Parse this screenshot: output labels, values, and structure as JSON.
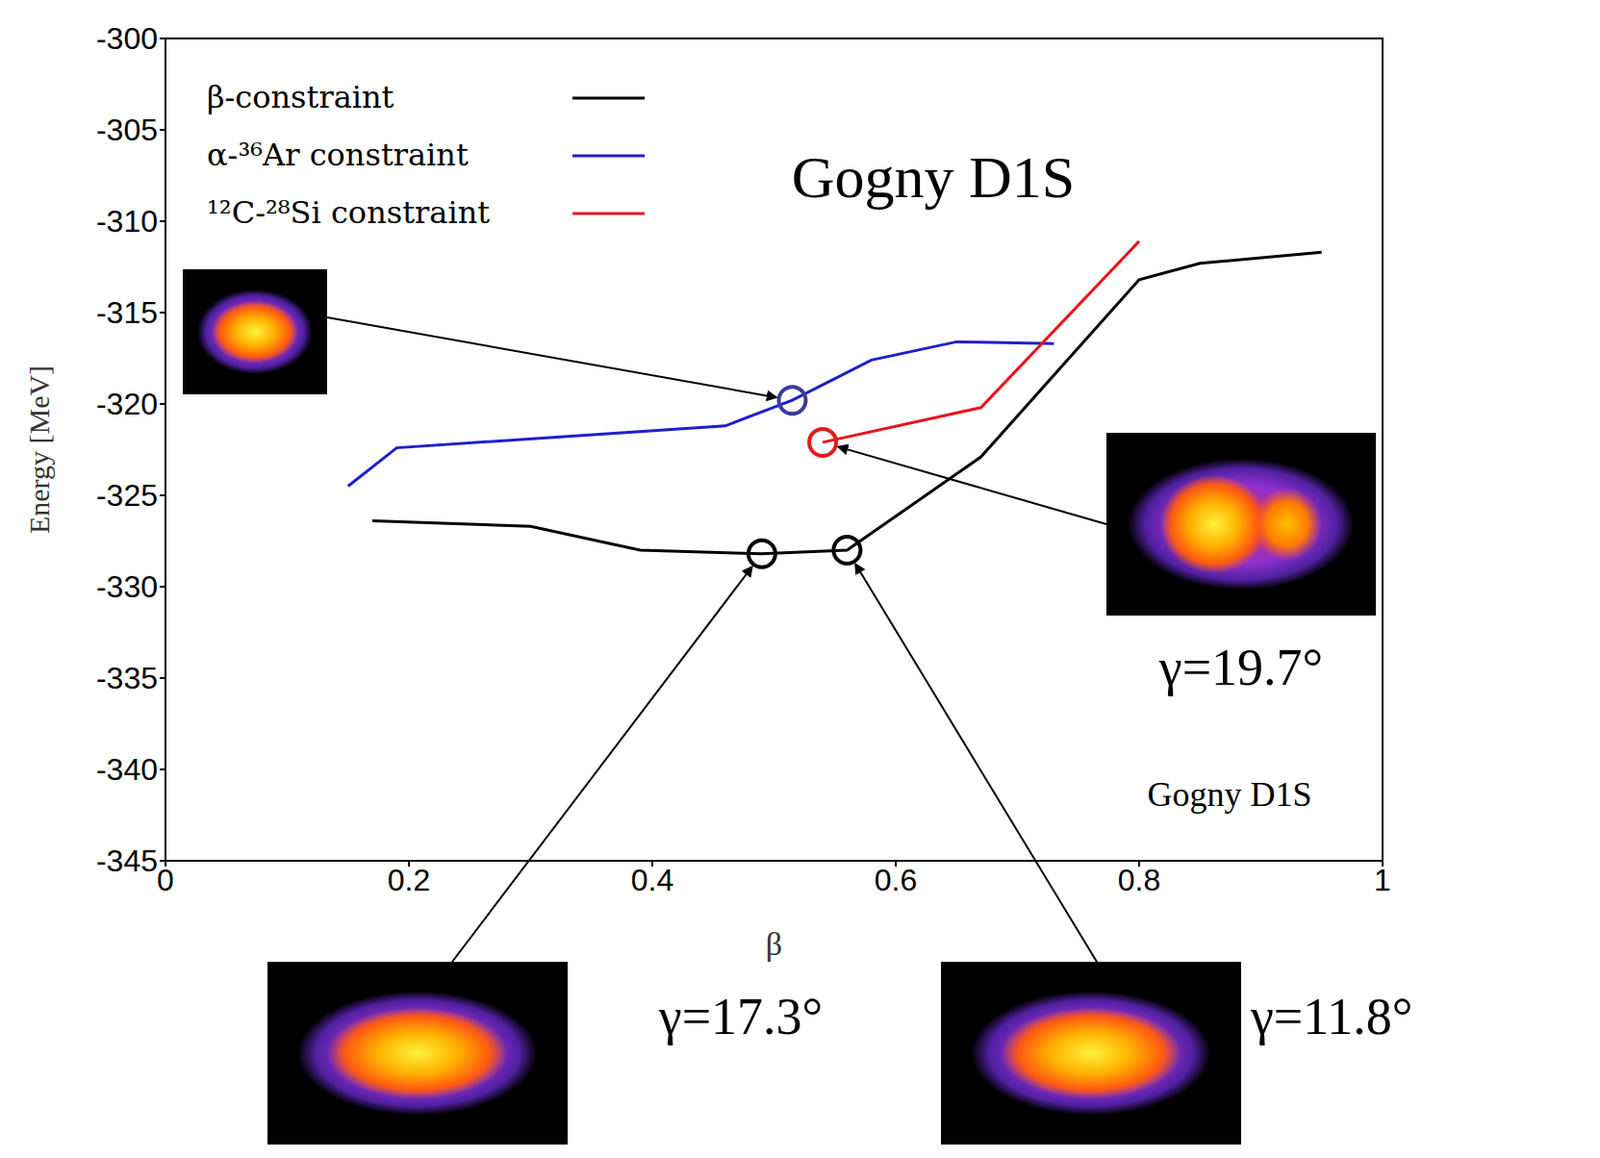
{
  "chart_data": {
    "type": "line",
    "title": "Gogny D1S",
    "xlabel": "β",
    "ylabel": "Energy [MeV]",
    "xlim": [
      0,
      1
    ],
    "xticks": [
      0,
      0.2,
      0.4,
      0.6,
      0.8,
      1
    ],
    "ylim": [
      -345,
      -300
    ],
    "yticks": [
      -345,
      -340,
      -335,
      -330,
      -325,
      -320,
      -315,
      -310,
      -305,
      -300
    ],
    "grid": false,
    "legend": "upper left",
    "series": [
      {
        "name": "β-constraint",
        "color": "#000000",
        "x": [
          0.17,
          0.3,
          0.39,
          0.49,
          0.56,
          0.67,
          0.8,
          0.85,
          0.95
        ],
        "values": [
          -326.4,
          -326.7,
          -328.0,
          -328.2,
          -328.0,
          -322.9,
          -313.2,
          -312.3,
          -311.7
        ]
      },
      {
        "name": "α-³⁶Ar constraint",
        "color": "#1f1fcc",
        "x": [
          0.15,
          0.19,
          0.46,
          0.515,
          0.58,
          0.65,
          0.73
        ],
        "values": [
          -324.5,
          -322.4,
          -321.2,
          -319.8,
          -317.6,
          -316.6,
          -316.7
        ]
      },
      {
        "name": "¹²C-²⁸Si constraint",
        "color": "#e8141c",
        "x": [
          0.54,
          0.67,
          0.8
        ],
        "values": [
          -322.1,
          -320.2,
          -311.1
        ]
      }
    ],
    "highlights": [
      {
        "x": 0.515,
        "y": -319.8,
        "color": "#3a3a9a"
      },
      {
        "x": 0.54,
        "y": -322.1,
        "color": "#e01c1c",
        "label": "γ=19.7°"
      },
      {
        "x": 0.49,
        "y": -328.2,
        "color": "#000000",
        "label": "γ=17.3°"
      },
      {
        "x": 0.56,
        "y": -328.0,
        "color": "#000000",
        "label": "γ=11.8°"
      }
    ],
    "annotations": [
      "Gogny D1S"
    ]
  }
}
